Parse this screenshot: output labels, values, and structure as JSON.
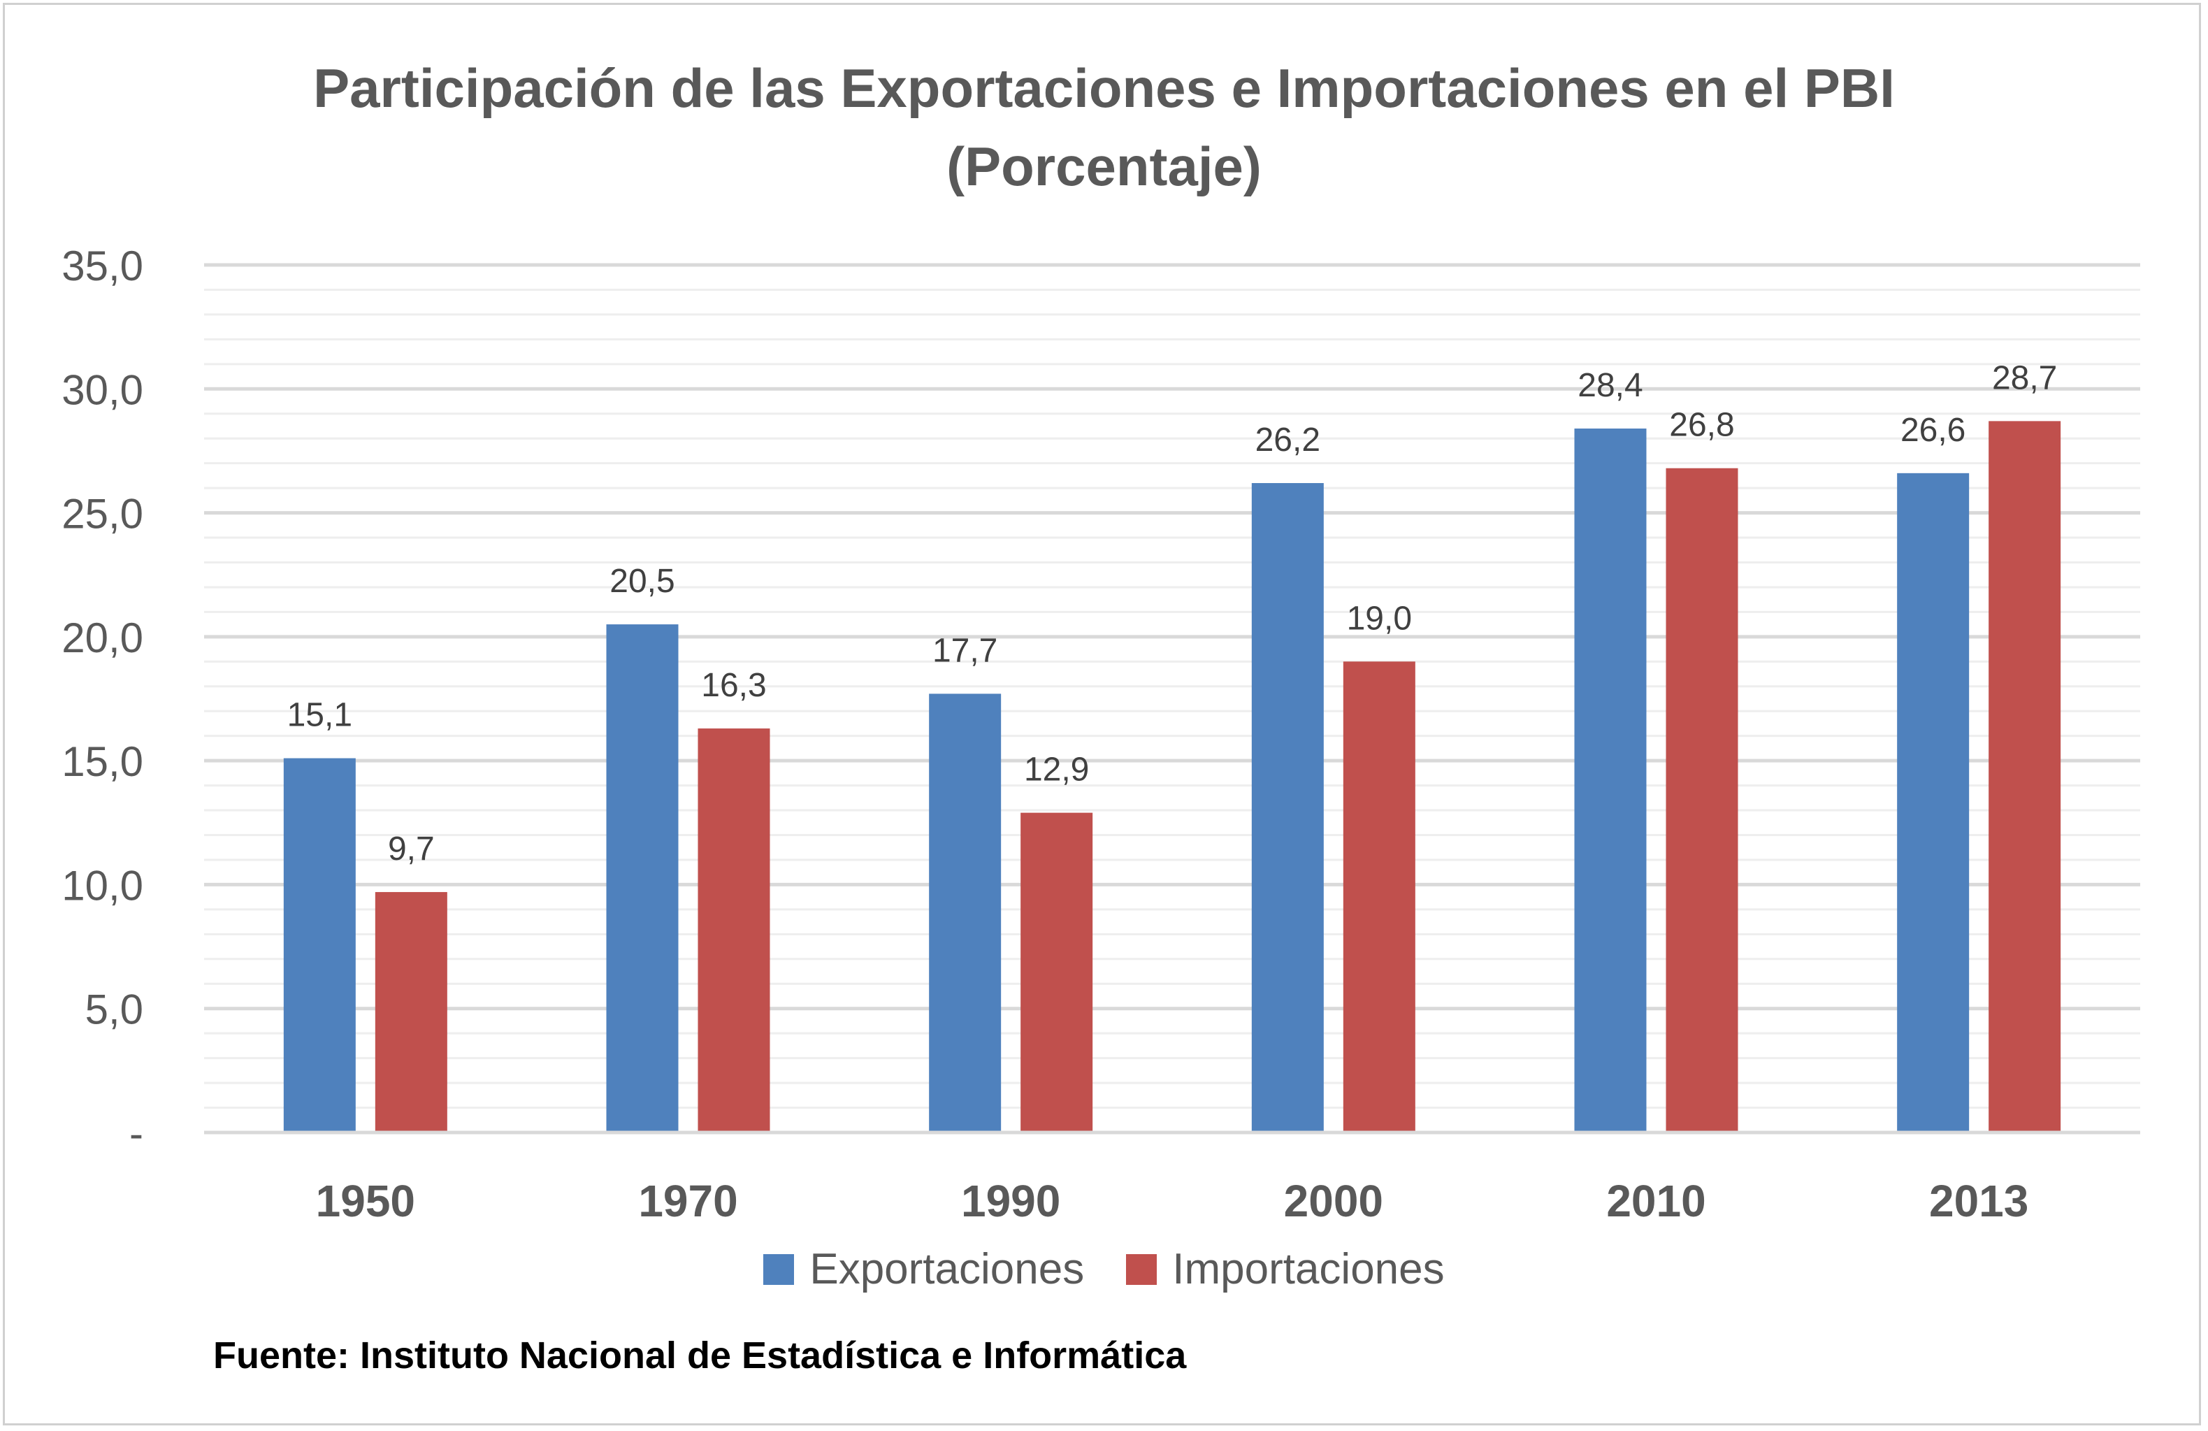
{
  "colors": {
    "export": "#4f81bd",
    "import": "#c0504d",
    "grid_major": "#d9d9d9",
    "grid_minor": "#eeeeee",
    "text": "#595959"
  },
  "chart_data": {
    "type": "bar",
    "title": "Participación de las Exportaciones e Importaciones en el PBI",
    "subtitle": "(Porcentaje)",
    "categories": [
      "1950",
      "1970",
      "1990",
      "2000",
      "2010",
      "2013"
    ],
    "series": [
      {
        "name": "Exportaciones",
        "values": [
          15.1,
          20.5,
          17.7,
          26.2,
          28.4,
          26.6
        ],
        "labels": [
          "15,1",
          "20,5",
          "17,7",
          "26,2",
          "28,4",
          "26,6"
        ]
      },
      {
        "name": "Importaciones",
        "values": [
          9.7,
          16.3,
          12.9,
          19.0,
          26.8,
          28.7
        ],
        "labels": [
          "9,7",
          "16,3",
          "12,9",
          "19,0",
          "26,8",
          "28,7"
        ]
      }
    ],
    "ylim": [
      0,
      35
    ],
    "yticks": [
      0,
      5,
      10,
      15,
      20,
      25,
      30,
      35
    ],
    "ytick_labels": [
      "-",
      "5,0",
      "10,0",
      "15,0",
      "20,0",
      "25,0",
      "30,0",
      "35,0"
    ],
    "minor_step": 1,
    "grid": true,
    "legend": "bottom",
    "xlabel": "",
    "ylabel": ""
  },
  "source": "Fuente: Instituto Nacional de Estadística e Informática"
}
